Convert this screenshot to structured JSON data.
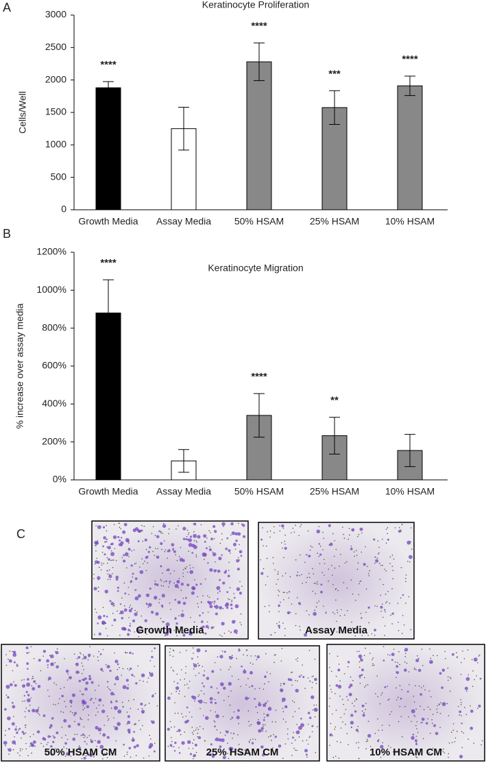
{
  "panel_labels": [
    "A",
    "B",
    "C"
  ],
  "chart_data": [
    {
      "type": "bar",
      "title": "Keratinocyte Proliferation",
      "y_label": "Cells/Well",
      "categories": [
        "Growth Media",
        "Assay Media",
        "50% HSAM",
        "25% HSAM",
        "10% HSAM"
      ],
      "values": [
        1880,
        1250,
        2280,
        1575,
        1910
      ],
      "errors": [
        95,
        330,
        290,
        260,
        150
      ],
      "colors": [
        "#000000",
        "#ffffff",
        "#888888",
        "#888888",
        "#888888"
      ],
      "annotations": [
        "****",
        null,
        "****",
        "***",
        "****"
      ],
      "ylim": [
        0,
        3000
      ],
      "yticks": [
        0,
        500,
        1000,
        1500,
        2000,
        2500,
        3000
      ],
      "grid": false
    },
    {
      "type": "bar",
      "title": "Keratinocyte Migration",
      "y_label": "% increase over assay media",
      "categories": [
        "Growth Media",
        "Assay Media",
        "50% HSAM",
        "25% HSAM",
        "10% HSAM"
      ],
      "values": [
        880,
        100,
        340,
        233,
        155
      ],
      "errors": [
        175,
        60,
        115,
        97,
        85
      ],
      "colors": [
        "#000000",
        "#ffffff",
        "#888888",
        "#888888",
        "#888888"
      ],
      "annotations": [
        "****",
        null,
        "****",
        "**",
        null
      ],
      "ylim": [
        0,
        1200
      ],
      "yticks": [
        {
          "value": 0,
          "label": "0%"
        },
        {
          "value": 200,
          "label": "200%"
        },
        {
          "value": 400,
          "label": "400%"
        },
        {
          "value": 600,
          "label": "600%"
        },
        {
          "value": 800,
          "label": "800%"
        },
        {
          "value": 1000,
          "label": "1000%"
        },
        {
          "value": 1200,
          "label": "1200%"
        }
      ],
      "grid": false
    }
  ],
  "micrographs": [
    "Growth Media",
    "Assay Media",
    "50% HSAM CM",
    "25% HSAM CM",
    "10% HSAM CM"
  ]
}
